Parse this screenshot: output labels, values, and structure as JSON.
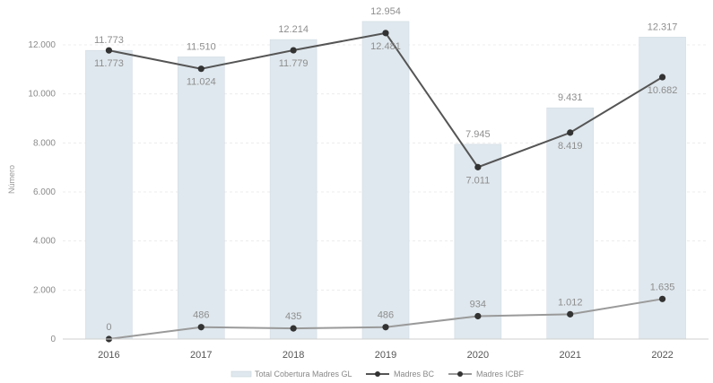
{
  "chart_data": {
    "type": "bar",
    "categories": [
      "2016",
      "2017",
      "2018",
      "2019",
      "2020",
      "2021",
      "2022"
    ],
    "ylabel": "Número",
    "ylim": [
      0,
      13000
    ],
    "yticks": [
      0,
      2000,
      4000,
      6000,
      8000,
      10000,
      12000
    ],
    "ytick_labels": [
      "0",
      "2.000",
      "4.000",
      "6.000",
      "8.000",
      "10.000",
      "12.000"
    ],
    "grid": true,
    "legend_position": "bottom",
    "series": [
      {
        "name": "Total Cobertura Madres GL",
        "kind": "bar",
        "color": "#dfe8ee",
        "values": [
          11773,
          11510,
          12214,
          12954,
          7945,
          9431,
          12317
        ],
        "labels": [
          "11.773",
          "11.510",
          "12.214",
          "12.954",
          "7.945",
          "9.431",
          "12.317"
        ]
      },
      {
        "name": "Madres BC",
        "kind": "line",
        "color": "#555555",
        "values": [
          11773,
          11024,
          11779,
          12481,
          7011,
          8419,
          10682
        ],
        "labels": [
          "11.773",
          "11.024",
          "11.779",
          "12.481",
          "7.011",
          "8.419",
          "10.682"
        ]
      },
      {
        "name": "Madres ICBF",
        "kind": "line",
        "color": "#9a9a9a",
        "values": [
          0,
          486,
          435,
          486,
          934,
          1012,
          1635
        ],
        "labels": [
          "0",
          "486",
          "435",
          "486",
          "934",
          "1.012",
          "1.635"
        ]
      }
    ]
  }
}
